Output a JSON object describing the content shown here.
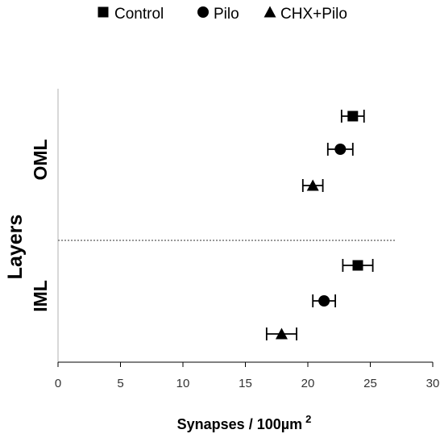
{
  "chart_data": {
    "type": "scatter",
    "orientation": "horizontal",
    "xlabel": "Synapses / 100µm",
    "xlabel_superscript": "2",
    "ylabel": "Layers",
    "xlim": [
      0,
      30
    ],
    "xticks": [
      0,
      5,
      10,
      15,
      20,
      25,
      30
    ],
    "categories": [
      "OML",
      "IML"
    ],
    "separator_x_end": 27,
    "legend_position": "top",
    "series": [
      {
        "name": "Control",
        "marker": "square",
        "values": [
          23.6,
          24.0
        ],
        "errors": [
          0.9,
          1.2
        ]
      },
      {
        "name": "Pilo",
        "marker": "circle",
        "values": [
          22.6,
          21.3
        ],
        "errors": [
          1.0,
          0.9
        ]
      },
      {
        "name": "CHX+Pilo",
        "marker": "triangle",
        "values": [
          20.4,
          17.9
        ],
        "errors": [
          0.8,
          1.2
        ]
      }
    ]
  }
}
